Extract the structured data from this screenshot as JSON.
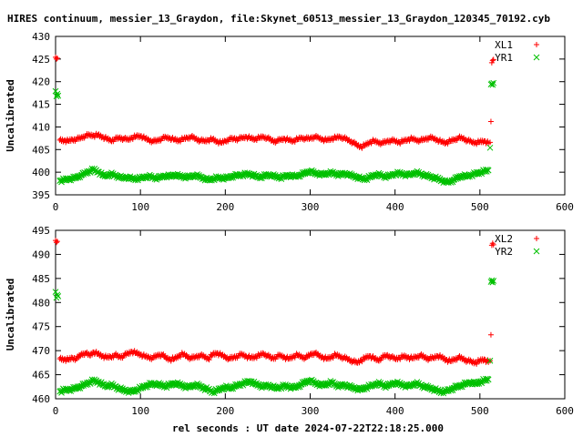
{
  "title": "HIRES continuum, messier_13_Graydon, file:Skynet_60513_messier_13_Graydon_120345_70192.cyb",
  "xlabel": "rel seconds : UT date 2024-07-22T22:18:25.000",
  "colors": {
    "red": "#ff0000",
    "green": "#00c000",
    "axis": "#000000"
  },
  "chart_data": [
    {
      "type": "scatter",
      "ylabel": "Uncalibrated",
      "xlim": [
        0,
        600
      ],
      "ylim": [
        395,
        430
      ],
      "xticks": [
        "0",
        "100",
        "200",
        "300",
        "400",
        "500",
        "600"
      ],
      "yticks": [
        "395",
        "400",
        "405",
        "410",
        "415",
        "420",
        "425",
        "430"
      ],
      "legend_position": "top-right",
      "series": [
        {
          "name": "XL1",
          "marker": "plus",
          "color": "#ff0000",
          "x": [
            0,
            1,
            2,
            5,
            10,
            15,
            20,
            25,
            30,
            35,
            40,
            45,
            50,
            55,
            60,
            65,
            70,
            75,
            80,
            85,
            90,
            95,
            100,
            105,
            110,
            115,
            120,
            125,
            130,
            135,
            140,
            145,
            150,
            155,
            160,
            165,
            170,
            175,
            180,
            185,
            190,
            195,
            200,
            205,
            210,
            215,
            220,
            225,
            230,
            235,
            240,
            245,
            250,
            255,
            260,
            265,
            270,
            275,
            280,
            285,
            290,
            295,
            300,
            305,
            310,
            315,
            320,
            325,
            330,
            335,
            340,
            345,
            350,
            355,
            360,
            365,
            370,
            375,
            380,
            385,
            390,
            395,
            400,
            405,
            410,
            415,
            420,
            425,
            430,
            435,
            440,
            445,
            450,
            455,
            460,
            465,
            470,
            475,
            480,
            485,
            490,
            495,
            500,
            505,
            510,
            512,
            513,
            514,
            515,
            516
          ],
          "y": [
            425.4,
            425.0,
            425.2,
            407.1,
            407.0,
            406.9,
            407.2,
            407.3,
            407.6,
            408.0,
            408.2,
            408.1,
            408.2,
            407.8,
            407.4,
            407.0,
            407.3,
            407.6,
            407.4,
            407.2,
            407.6,
            407.9,
            408.0,
            407.5,
            407.1,
            406.8,
            407.0,
            407.4,
            407.7,
            407.5,
            407.2,
            407.0,
            407.3,
            407.6,
            407.8,
            407.4,
            407.0,
            406.9,
            407.1,
            407.3,
            406.8,
            406.5,
            406.9,
            407.3,
            407.4,
            407.3,
            407.6,
            407.8,
            407.5,
            407.3,
            407.6,
            407.8,
            407.5,
            407.0,
            406.8,
            407.2,
            407.4,
            407.1,
            406.9,
            407.3,
            407.6,
            407.4,
            407.5,
            407.8,
            407.6,
            407.2,
            407.1,
            407.4,
            407.6,
            407.8,
            407.5,
            407.1,
            406.6,
            406.0,
            405.6,
            406.0,
            406.6,
            406.9,
            406.6,
            406.4,
            406.8,
            407.0,
            406.9,
            406.6,
            406.9,
            407.2,
            407.4,
            407.1,
            407.0,
            407.3,
            407.6,
            407.5,
            407.1,
            406.7,
            406.5,
            406.9,
            407.2,
            407.6,
            407.5,
            407.0,
            406.7,
            406.5,
            406.7,
            406.9,
            406.4,
            406.6,
            411.2,
            424.2,
            424.7,
            424.9
          ]
        },
        {
          "name": "YR1",
          "marker": "cross",
          "color": "#00c000",
          "x": [
            0,
            1,
            2,
            3,
            5,
            10,
            15,
            20,
            25,
            30,
            35,
            40,
            45,
            50,
            55,
            60,
            65,
            70,
            75,
            80,
            85,
            90,
            95,
            100,
            105,
            110,
            115,
            120,
            125,
            130,
            135,
            140,
            145,
            150,
            155,
            160,
            165,
            170,
            175,
            180,
            185,
            190,
            195,
            200,
            205,
            210,
            215,
            220,
            225,
            230,
            235,
            240,
            245,
            250,
            255,
            260,
            265,
            270,
            275,
            280,
            285,
            290,
            295,
            300,
            305,
            310,
            315,
            320,
            325,
            330,
            335,
            340,
            345,
            350,
            355,
            360,
            365,
            370,
            375,
            380,
            385,
            390,
            395,
            400,
            405,
            410,
            415,
            420,
            425,
            430,
            435,
            440,
            445,
            450,
            455,
            460,
            465,
            470,
            475,
            480,
            485,
            490,
            495,
            500,
            505,
            510,
            512,
            513,
            514,
            515,
            516
          ],
          "y": [
            417.9,
            416.8,
            417.3,
            416.9,
            398.1,
            398.3,
            398.5,
            398.6,
            398.9,
            399.3,
            399.8,
            400.2,
            400.6,
            400.1,
            399.4,
            399.2,
            399.6,
            399.3,
            399.0,
            398.7,
            398.9,
            398.6,
            398.5,
            398.7,
            398.9,
            399.1,
            398.8,
            398.7,
            399.0,
            399.2,
            399.1,
            399.4,
            399.2,
            399.0,
            398.9,
            399.1,
            399.3,
            399.0,
            398.6,
            398.3,
            398.5,
            398.8,
            398.7,
            398.7,
            398.9,
            399.2,
            399.3,
            399.4,
            399.6,
            399.5,
            399.2,
            398.9,
            399.1,
            399.4,
            399.3,
            399.0,
            398.8,
            399.1,
            399.3,
            399.1,
            399.2,
            399.5,
            399.9,
            400.2,
            399.8,
            399.6,
            399.5,
            399.7,
            399.9,
            399.6,
            399.4,
            399.7,
            399.5,
            399.2,
            398.9,
            398.6,
            398.5,
            398.9,
            399.3,
            399.5,
            399.2,
            399.0,
            399.3,
            399.6,
            399.8,
            399.5,
            399.4,
            399.6,
            399.9,
            399.6,
            399.3,
            399.1,
            398.8,
            398.6,
            398.2,
            397.8,
            397.9,
            398.4,
            398.9,
            399.2,
            399.1,
            399.4,
            399.7,
            399.9,
            400.2,
            400.4,
            405.4,
            419.4,
            419.6,
            419.3,
            419.7
          ]
        }
      ]
    },
    {
      "type": "scatter",
      "ylabel": "Uncalibrated",
      "xlim": [
        0,
        600
      ],
      "ylim": [
        460,
        495
      ],
      "xticks": [
        "0",
        "100",
        "200",
        "300",
        "400",
        "500",
        "600"
      ],
      "yticks": [
        "460",
        "465",
        "470",
        "475",
        "480",
        "485",
        "490",
        "495"
      ],
      "legend_position": "top-right",
      "series": [
        {
          "name": "XL2",
          "marker": "plus",
          "color": "#ff0000",
          "x": [
            0,
            1,
            2,
            5,
            10,
            15,
            20,
            25,
            30,
            35,
            40,
            45,
            50,
            55,
            60,
            65,
            70,
            75,
            80,
            85,
            90,
            95,
            100,
            105,
            110,
            115,
            120,
            125,
            130,
            135,
            140,
            145,
            150,
            155,
            160,
            165,
            170,
            175,
            180,
            185,
            190,
            195,
            200,
            205,
            210,
            215,
            220,
            225,
            230,
            235,
            240,
            245,
            250,
            255,
            260,
            265,
            270,
            275,
            280,
            285,
            290,
            295,
            300,
            305,
            310,
            315,
            320,
            325,
            330,
            335,
            340,
            345,
            350,
            355,
            360,
            365,
            370,
            375,
            380,
            385,
            390,
            395,
            400,
            405,
            410,
            415,
            420,
            425,
            430,
            435,
            440,
            445,
            450,
            455,
            460,
            465,
            470,
            475,
            480,
            485,
            490,
            495,
            500,
            505,
            510,
            512,
            513,
            514,
            515,
            516
          ],
          "y": [
            492.9,
            492.5,
            492.7,
            468.3,
            468.2,
            468.1,
            468.5,
            468.3,
            469.2,
            469.5,
            469.0,
            469.7,
            469.3,
            468.9,
            468.6,
            468.7,
            469.1,
            468.7,
            468.9,
            469.4,
            469.8,
            469.5,
            469.2,
            468.8,
            468.6,
            468.5,
            469.0,
            469.2,
            468.5,
            468.2,
            468.3,
            468.9,
            469.3,
            468.8,
            468.4,
            468.7,
            469.0,
            468.8,
            468.3,
            469.2,
            469.5,
            469.1,
            468.7,
            468.3,
            468.6,
            468.9,
            469.2,
            468.8,
            468.5,
            468.7,
            469.0,
            469.4,
            468.9,
            468.4,
            468.7,
            469.0,
            468.6,
            468.3,
            468.8,
            469.1,
            468.7,
            468.5,
            469.2,
            469.5,
            469.0,
            468.6,
            468.3,
            468.7,
            469.1,
            468.8,
            468.5,
            468.2,
            467.8,
            467.5,
            468.0,
            468.5,
            468.9,
            468.4,
            468.0,
            468.6,
            469.0,
            468.7,
            468.3,
            468.5,
            468.8,
            468.6,
            468.4,
            468.7,
            469.0,
            468.6,
            468.3,
            468.5,
            468.9,
            468.6,
            468.1,
            467.8,
            468.2,
            468.6,
            468.3,
            467.9,
            467.7,
            467.5,
            467.9,
            468.2,
            467.6,
            467.9,
            473.3,
            491.9,
            492.3,
            492.0
          ]
        },
        {
          "name": "YR2",
          "marker": "cross",
          "color": "#00c000",
          "x": [
            0,
            1,
            2,
            3,
            5,
            10,
            15,
            20,
            25,
            30,
            35,
            40,
            45,
            50,
            55,
            60,
            65,
            70,
            75,
            80,
            85,
            90,
            95,
            100,
            105,
            110,
            115,
            120,
            125,
            130,
            135,
            140,
            145,
            150,
            155,
            160,
            165,
            170,
            175,
            180,
            185,
            190,
            195,
            200,
            205,
            210,
            215,
            220,
            225,
            230,
            235,
            240,
            245,
            250,
            255,
            260,
            265,
            270,
            275,
            280,
            285,
            290,
            295,
            300,
            305,
            310,
            315,
            320,
            325,
            330,
            335,
            340,
            345,
            350,
            355,
            360,
            365,
            370,
            375,
            380,
            385,
            390,
            395,
            400,
            405,
            410,
            415,
            420,
            425,
            430,
            435,
            440,
            445,
            450,
            455,
            460,
            465,
            470,
            475,
            480,
            485,
            490,
            495,
            500,
            505,
            510,
            512,
            513,
            514,
            515,
            516
          ],
          "y": [
            482.2,
            481.0,
            481.6,
            481.3,
            461.5,
            461.8,
            461.9,
            462.0,
            462.3,
            462.6,
            463.0,
            463.4,
            463.8,
            463.5,
            463.0,
            462.6,
            462.9,
            462.5,
            462.1,
            461.8,
            461.6,
            461.5,
            461.8,
            462.2,
            462.6,
            462.9,
            463.1,
            463.0,
            462.8,
            462.6,
            462.9,
            463.2,
            463.0,
            462.7,
            462.4,
            462.6,
            462.9,
            462.6,
            462.2,
            461.9,
            461.4,
            461.7,
            462.1,
            462.4,
            462.2,
            462.5,
            462.8,
            463.1,
            463.4,
            463.6,
            463.1,
            462.8,
            462.5,
            462.8,
            462.5,
            462.2,
            462.4,
            462.7,
            462.5,
            462.3,
            462.6,
            463.0,
            463.5,
            463.8,
            463.3,
            463.0,
            462.8,
            463.1,
            463.4,
            462.9,
            462.6,
            462.9,
            462.6,
            462.3,
            462.1,
            461.9,
            462.3,
            462.6,
            462.9,
            463.2,
            462.9,
            462.6,
            463.0,
            463.3,
            463.1,
            462.8,
            462.6,
            462.9,
            463.2,
            462.8,
            462.5,
            462.3,
            462.0,
            461.7,
            461.4,
            461.6,
            461.9,
            462.3,
            462.6,
            462.9,
            463.2,
            463.4,
            463.1,
            463.5,
            463.8,
            464.0,
            467.9,
            484.3,
            484.6,
            484.2,
            484.5
          ]
        }
      ]
    }
  ]
}
